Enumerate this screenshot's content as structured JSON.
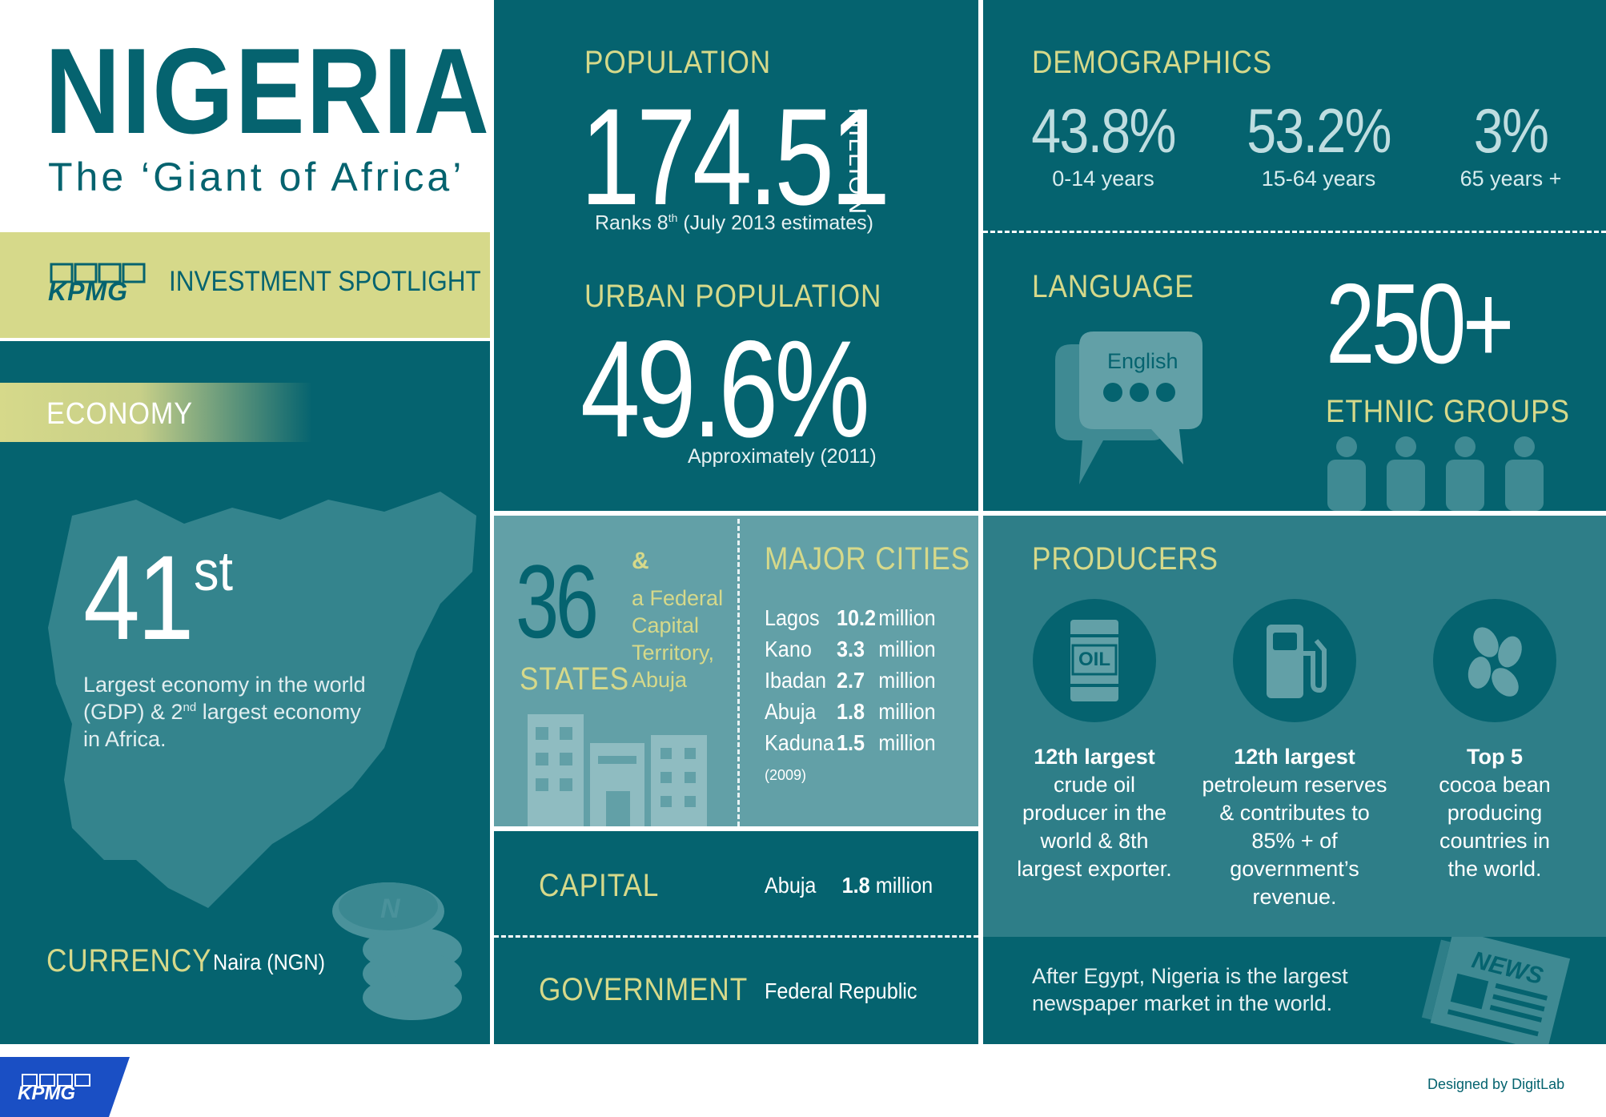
{
  "header": {
    "title": "NIGERIA",
    "subtitle": "The ‘Giant of Africa’"
  },
  "spotlight": {
    "brand": "KPMG",
    "label": "INVESTMENT SPOTLIGHT"
  },
  "economy": {
    "heading": "ECONOMY",
    "rank_number": "41",
    "rank_suffix": "st",
    "description_line1": "Largest economy in the world",
    "description_line2_a": "(GDP) & 2",
    "description_line2_sup": "nd",
    "description_line2_b": " largest economy",
    "description_line3": "in Africa.",
    "currency_label": "CURRENCY",
    "currency_value": "Naira (NGN)",
    "coin_letter": "N"
  },
  "population": {
    "heading": "POPULATION",
    "value": "174.51",
    "unit": "MILLION",
    "note_a": "Ranks 8",
    "note_sup": "th",
    "note_b": " (July 2013 estimates)"
  },
  "urban_population": {
    "heading": "URBAN POPULATION",
    "value": "49.6%",
    "note": "Approximately (2011)"
  },
  "states": {
    "number": "36",
    "label": "STATES",
    "amp": "&",
    "line1": "a Federal",
    "line2": "Capital",
    "line3": "Territory,",
    "line4": "Abuja"
  },
  "major_cities": {
    "heading": "MAJOR CITIES",
    "cities": [
      {
        "name": "Lagos",
        "value": "10.2",
        "unit": "million"
      },
      {
        "name": "Kano",
        "value": "3.3",
        "unit": "million"
      },
      {
        "name": "Ibadan",
        "value": "2.7",
        "unit": "million"
      },
      {
        "name": "Abuja",
        "value": "1.8",
        "unit": "million"
      },
      {
        "name": "Kaduna",
        "value": "1.5",
        "unit": "million"
      }
    ],
    "year": "(2009)"
  },
  "capital": {
    "label": "CAPITAL",
    "city": "Abuja",
    "value": "1.8",
    "unit": "million"
  },
  "government": {
    "label": "GOVERNMENT",
    "value": "Federal Republic"
  },
  "demographics": {
    "heading": "DEMOGRAPHICS",
    "groups": [
      {
        "pct": "43.8%",
        "label": "0-14 years"
      },
      {
        "pct": "53.2%",
        "label": "15-64 years"
      },
      {
        "pct": "3%",
        "label": "65 years +"
      }
    ]
  },
  "language": {
    "heading": "LANGUAGE",
    "bubble_text": "English",
    "ethnic_count": "250+",
    "ethnic_label": "ETHNIC GROUPS"
  },
  "producers": {
    "heading": "PRODUCERS",
    "oil_label": "OIL",
    "items": [
      {
        "bold": "12th largest",
        "lines": [
          "crude oil",
          "producer in the",
          "world & 8th",
          "largest exporter."
        ]
      },
      {
        "bold": "12th largest",
        "lines": [
          "petroleum reserves",
          "& contributes to",
          "85% + of",
          "government’s",
          "revenue."
        ]
      },
      {
        "bold": "Top 5",
        "lines": [
          "cocoa bean",
          "producing",
          "countries in",
          "the world."
        ]
      }
    ]
  },
  "newspaper": {
    "line1": "After Egypt, Nigeria is the largest",
    "line2": "newspaper market in the world.",
    "icon_text": "NEWS"
  },
  "footer": {
    "brand": "KPMG",
    "credit": "Designed by DigitLab"
  },
  "colors": {
    "teal": "#05636f",
    "teal_light": "#62a0a7",
    "accent_yellow": "#d6d98a"
  }
}
